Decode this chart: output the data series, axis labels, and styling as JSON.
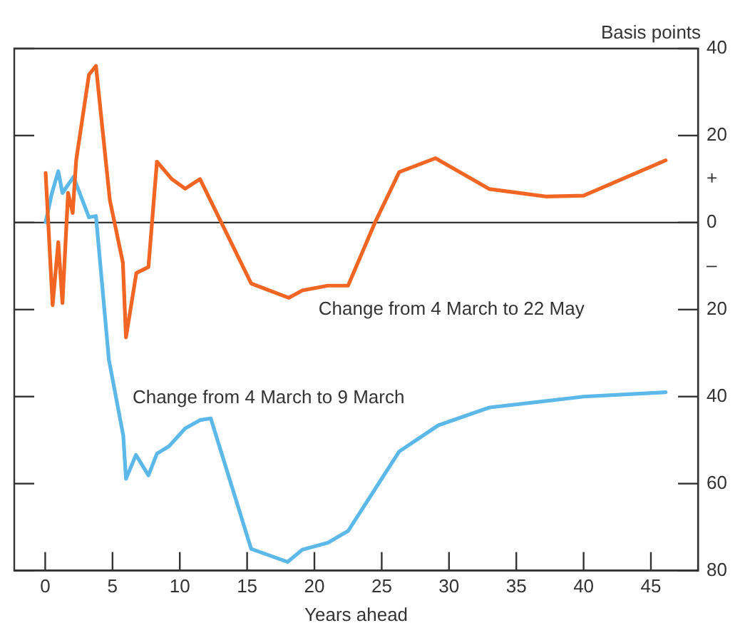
{
  "chart_data": {
    "type": "line",
    "xlabel": "Years ahead",
    "ylabel": "Basis points",
    "series": [
      {
        "name": "Change from 4 March to 22 May",
        "color": "#f26522",
        "x": [
          0.03,
          0.55,
          0.97,
          1.28,
          1.7,
          2.04,
          2.3,
          3.25,
          3.77,
          4.8,
          5.77,
          6.0,
          6.77,
          7.67,
          8.3,
          9.4,
          10.4,
          11.5,
          15.3,
          18.1,
          19.1,
          21.0,
          22.5,
          24.5,
          26.3,
          29.0,
          33.0,
          37.2,
          40.0,
          46.1
        ],
        "values": [
          11.4,
          -19,
          -4.5,
          -18.5,
          6.8,
          2.2,
          14.3,
          34,
          36,
          5.2,
          -9.2,
          -26.4,
          -11.6,
          -10.2,
          14,
          10,
          7.8,
          10,
          -14,
          -17.3,
          -15.6,
          -14.5,
          -14.5,
          0,
          11.6,
          14.8,
          7.7,
          6,
          6.2,
          14.3
        ]
      },
      {
        "name": "Change from 4 March to 9 March",
        "color": "#5bb8e8",
        "x": [
          0.03,
          0.5,
          0.97,
          1.28,
          2.1,
          3.25,
          3.77,
          4.73,
          5.8,
          6.0,
          6.74,
          7.67,
          8.3,
          9.2,
          10.4,
          11.5,
          12.3,
          15.3,
          18.0,
          19.1,
          21.0,
          22.5,
          26.3,
          29.2,
          33.0,
          40.0,
          46.1
        ],
        "values": [
          0.1,
          6.8,
          11.8,
          6.8,
          10.5,
          1.2,
          1.5,
          -31.5,
          -49,
          -58.9,
          -53.4,
          -58.1,
          -53.1,
          -51.4,
          -47.3,
          -45.4,
          -45,
          -75,
          -78,
          -75.2,
          -73.6,
          -70.9,
          -52.6,
          -46.6,
          -42.5,
          -40,
          -39
        ]
      }
    ],
    "xlim": [
      -2.3,
      48.5
    ],
    "xticks": [
      0,
      5,
      10,
      15,
      20,
      25,
      30,
      35,
      40,
      45
    ],
    "ylim": [
      -80,
      40
    ],
    "yticks": [
      40,
      20,
      {
        "value": 10,
        "label": "+"
      },
      0,
      {
        "value": -10,
        "label": "–"
      },
      {
        "value": -20,
        "label": "20"
      },
      {
        "value": -40,
        "label": "40"
      },
      {
        "value": -60,
        "label": "60"
      },
      {
        "value": -80,
        "label": "80"
      }
    ],
    "ref_lines": [
      {
        "axis": "y",
        "value": 0,
        "color": "#333333"
      }
    ],
    "marker": "none",
    "line_style": "solid",
    "grid": false,
    "legend": false
  }
}
